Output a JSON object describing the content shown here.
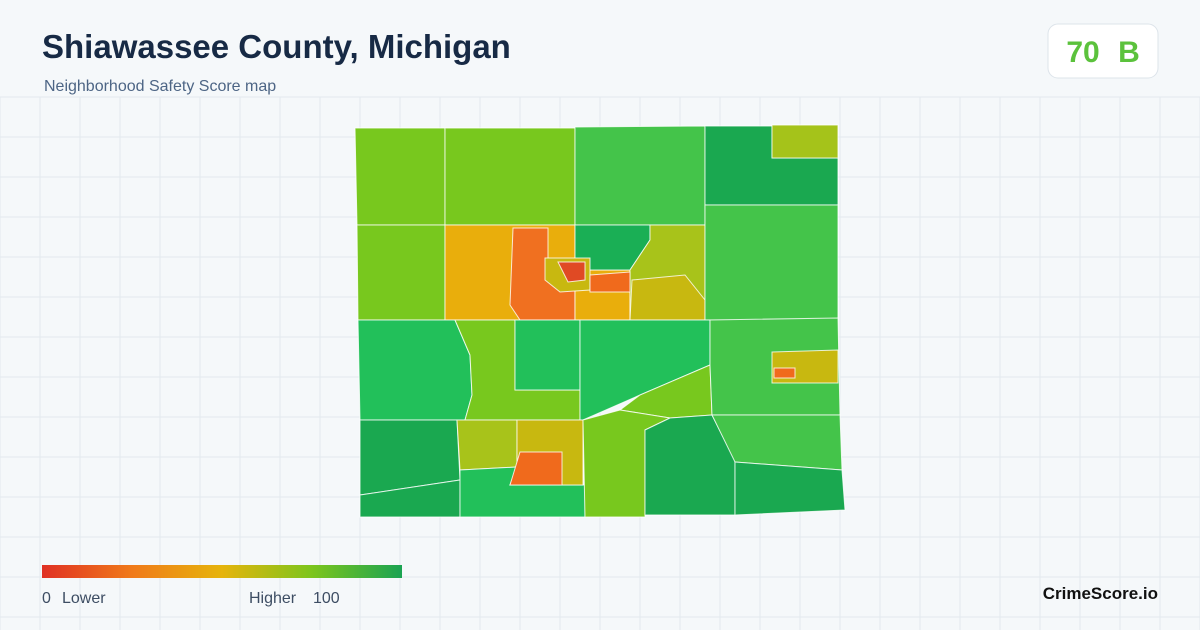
{
  "header": {
    "title": "Shiawassee County, Michigan",
    "subtitle": "Neighborhood Safety Score map"
  },
  "score": {
    "value": 70,
    "grade": "B"
  },
  "legend": {
    "min": 0,
    "min_label": "Lower",
    "max_label": "Higher",
    "max": 100
  },
  "brand": "CrimeScore.io"
}
